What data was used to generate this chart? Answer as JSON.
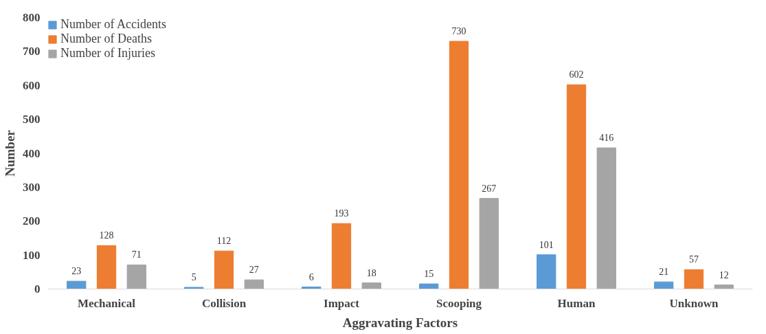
{
  "chart_data": {
    "type": "bar",
    "xlabel": "Aggravating Factors",
    "ylabel": "Number",
    "categories": [
      "Mechanical",
      "Collision",
      "Impact",
      "Scooping",
      "Human",
      "Unknown"
    ],
    "series": [
      {
        "name": "Number of Accidents",
        "color": "#5b9bd5",
        "values": [
          23,
          5,
          6,
          15,
          101,
          21
        ]
      },
      {
        "name": "Number of Deaths",
        "color": "#ed7d31",
        "values": [
          128,
          112,
          193,
          730,
          602,
          57
        ]
      },
      {
        "name": "Number of Injuries",
        "color": "#a5a5a5",
        "values": [
          71,
          27,
          18,
          267,
          416,
          12
        ]
      }
    ],
    "ylim": [
      0,
      800
    ],
    "yticks": [
      0,
      100,
      200,
      300,
      400,
      500,
      600,
      700,
      800
    ],
    "data_labels": true,
    "grid": false,
    "legend": "top left"
  }
}
